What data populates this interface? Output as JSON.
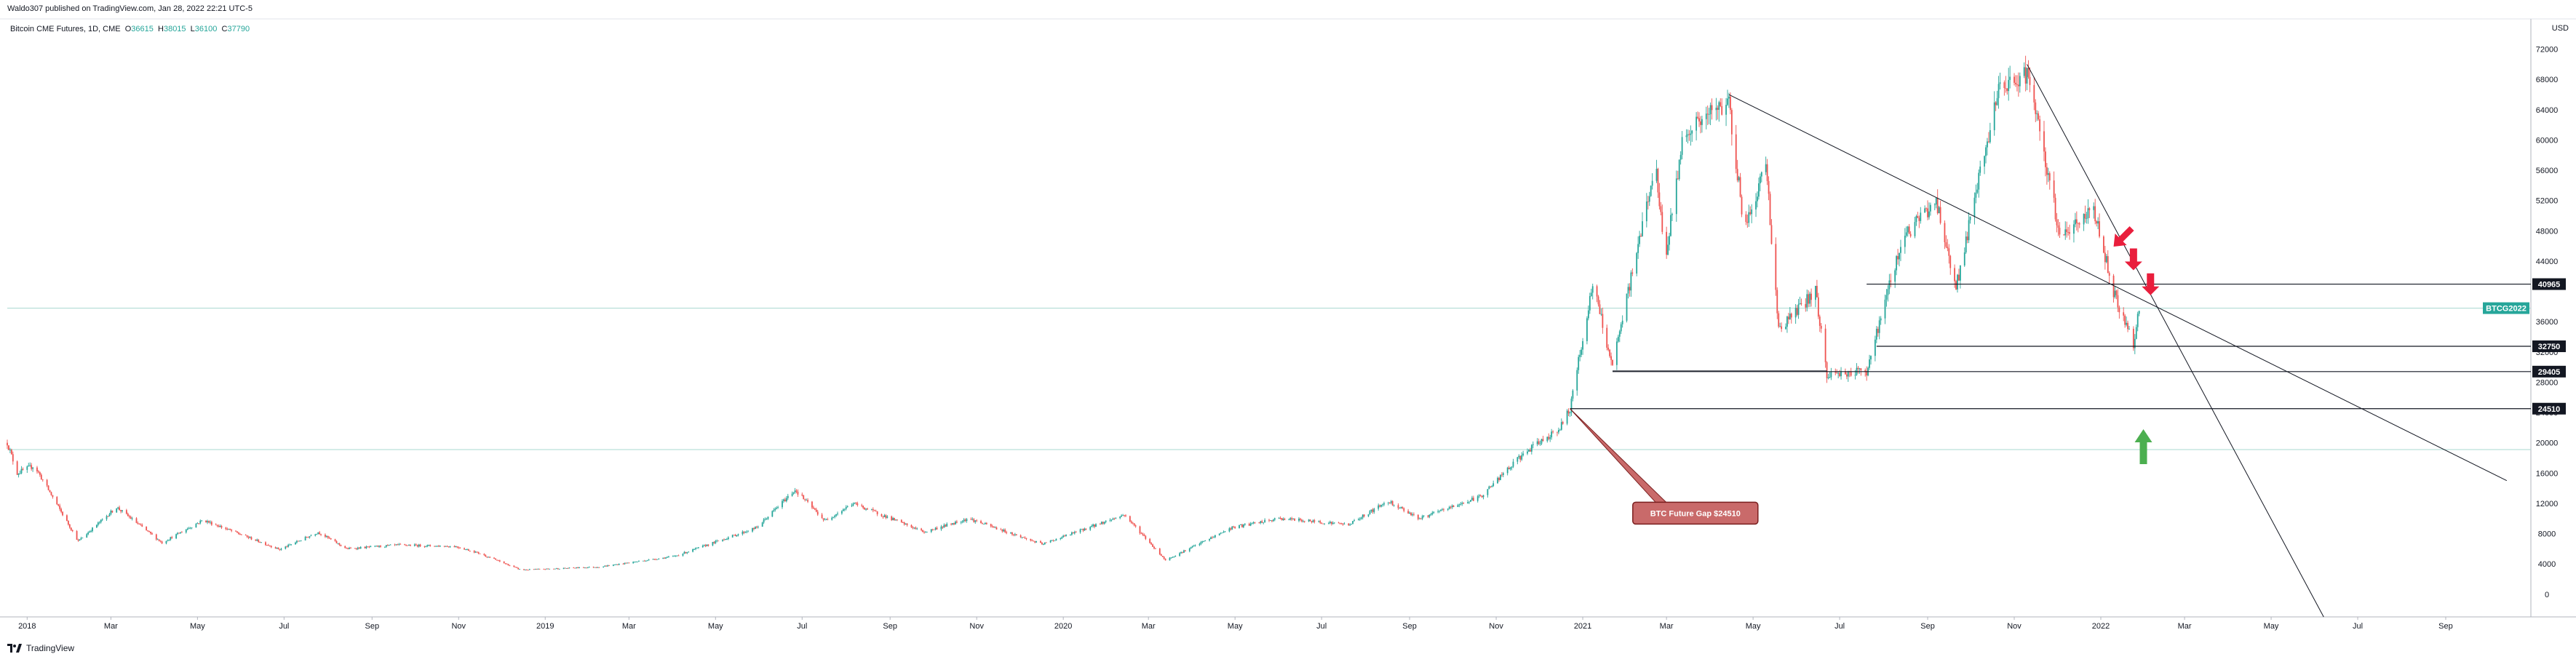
{
  "header": {
    "text": "Waldo307 published on TradingView.com, Jan 28, 2022 22:21 UTC-5"
  },
  "legend": {
    "symbol": "Bitcoin CME Futures, 1D, CME",
    "o_label": "O",
    "o": "36615",
    "h_label": "H",
    "h": "38015",
    "l_label": "L",
    "l": "36100",
    "c_label": "C",
    "c": "37790"
  },
  "footer": {
    "brand": "TradingView"
  },
  "colors": {
    "up": "#26a69a",
    "down": "#ef5350",
    "arrow_down": "#e91e3c",
    "arrow_up": "#4caf50",
    "tag": "#c96a6a"
  },
  "chart_data": {
    "type": "candlestick",
    "currency_label": "USD",
    "ylim": [
      -3000,
      76000
    ],
    "y_ticks": [
      "0",
      "4000",
      "8000",
      "12000",
      "16000",
      "20000",
      "24000",
      "28000",
      "32000",
      "36000",
      "40000",
      "44000",
      "48000",
      "52000",
      "56000",
      "60000",
      "64000",
      "68000",
      "72000"
    ],
    "x_ticks": [
      "2018",
      "Mar",
      "May",
      "Jul",
      "Sep",
      "Nov",
      "2019",
      "Mar",
      "May",
      "Jul",
      "Sep",
      "Nov",
      "2020",
      "Mar",
      "May",
      "Jul",
      "Sep",
      "Nov",
      "2021",
      "Mar",
      "May",
      "Jul",
      "Sep",
      "Nov",
      "2022",
      "Mar",
      "May",
      "Jul",
      "Sep"
    ],
    "x_range": [
      "2017-12-18",
      "2022-10-31"
    ],
    "price_path": [
      [
        "2017-12-18",
        20000
      ],
      [
        "2017-12-25",
        16000
      ],
      [
        "2018-01-06",
        17000
      ],
      [
        "2018-02-06",
        7000
      ],
      [
        "2018-03-05",
        11500
      ],
      [
        "2018-04-06",
        6800
      ],
      [
        "2018-05-05",
        9800
      ],
      [
        "2018-06-28",
        5900
      ],
      [
        "2018-07-25",
        8200
      ],
      [
        "2018-08-14",
        6000
      ],
      [
        "2018-09-20",
        6500
      ],
      [
        "2018-10-30",
        6300
      ],
      [
        "2018-11-14",
        5500
      ],
      [
        "2018-12-15",
        3200
      ],
      [
        "2019-02-08",
        3600
      ],
      [
        "2019-04-02",
        5000
      ],
      [
        "2019-05-30",
        8800
      ],
      [
        "2019-06-26",
        13800
      ],
      [
        "2019-07-17",
        9700
      ],
      [
        "2019-08-06",
        12000
      ],
      [
        "2019-09-25",
        8200
      ],
      [
        "2019-10-26",
        10000
      ],
      [
        "2019-12-17",
        6600
      ],
      [
        "2020-02-13",
        10500
      ],
      [
        "2020-03-13",
        4500
      ],
      [
        "2020-04-29",
        8800
      ],
      [
        "2020-06-02",
        10000
      ],
      [
        "2020-07-20",
        9200
      ],
      [
        "2020-08-17",
        12300
      ],
      [
        "2020-09-08",
        10000
      ],
      [
        "2020-10-21",
        12900
      ],
      [
        "2020-11-20",
        18500
      ],
      [
        "2020-12-16",
        22000
      ],
      [
        "2020-12-23",
        24510
      ],
      [
        "2021-01-08",
        41000
      ],
      [
        "2021-01-22",
        30000
      ],
      [
        "2021-02-21",
        57000
      ],
      [
        "2021-02-28",
        44000
      ],
      [
        "2021-03-13",
        61000
      ],
      [
        "2021-04-14",
        65000
      ],
      [
        "2021-04-25",
        48000
      ],
      [
        "2021-05-10",
        57000
      ],
      [
        "2021-05-19",
        35000
      ],
      [
        "2021-06-14",
        40000
      ],
      [
        "2021-06-22",
        29000
      ],
      [
        "2021-07-20",
        29500
      ],
      [
        "2021-08-14",
        47000
      ],
      [
        "2021-09-07",
        52000
      ],
      [
        "2021-09-21",
        40500
      ],
      [
        "2021-10-20",
        66000
      ],
      [
        "2021-11-10",
        69000
      ],
      [
        "2021-11-26",
        54000
      ],
      [
        "2021-12-04",
        47000
      ],
      [
        "2021-12-27",
        51000
      ],
      [
        "2022-01-10",
        40000
      ],
      [
        "2022-01-24",
        33000
      ],
      [
        "2022-01-28",
        37790
      ]
    ],
    "horizontal_levels": [
      {
        "value": 40965,
        "label": "40965",
        "from": "2021-07-20"
      },
      {
        "value": 32750,
        "label": "32750",
        "from": "2021-07-27"
      },
      {
        "value": 29405,
        "label": "29405",
        "from": "2021-01-22"
      },
      {
        "value": 24510,
        "label": "24510",
        "from": "2020-12-23"
      }
    ],
    "current_price": {
      "value": 37790,
      "label": "BTCG2022"
    },
    "reference_line": {
      "value": 19100
    },
    "trendlines": [
      {
        "from": [
          "2021-04-14",
          66000
        ],
        "to": [
          "2022-10-14",
          15000
        ]
      },
      {
        "from": [
          "2021-11-10",
          70000
        ],
        "to": [
          "2022-06-07",
          -3000
        ]
      },
      {
        "from": [
          "2021-01-22",
          29500
        ],
        "to": [
          "2021-06-22",
          29500
        ]
      }
    ],
    "annotation": {
      "text": "BTC Future Gap $24510",
      "anchor": [
        "2020-12-23",
        24510
      ],
      "box_at": [
        "2021-03-08",
        10800
      ]
    },
    "arrows": [
      {
        "dir": "down-left",
        "at": [
          "2022-01-10",
          46500
        ]
      },
      {
        "dir": "down",
        "at": [
          "2022-01-24",
          42800
        ]
      },
      {
        "dir": "down",
        "at": [
          "2022-02-05",
          39500
        ]
      },
      {
        "dir": "up",
        "at": [
          "2022-01-31",
          21800
        ]
      }
    ]
  }
}
